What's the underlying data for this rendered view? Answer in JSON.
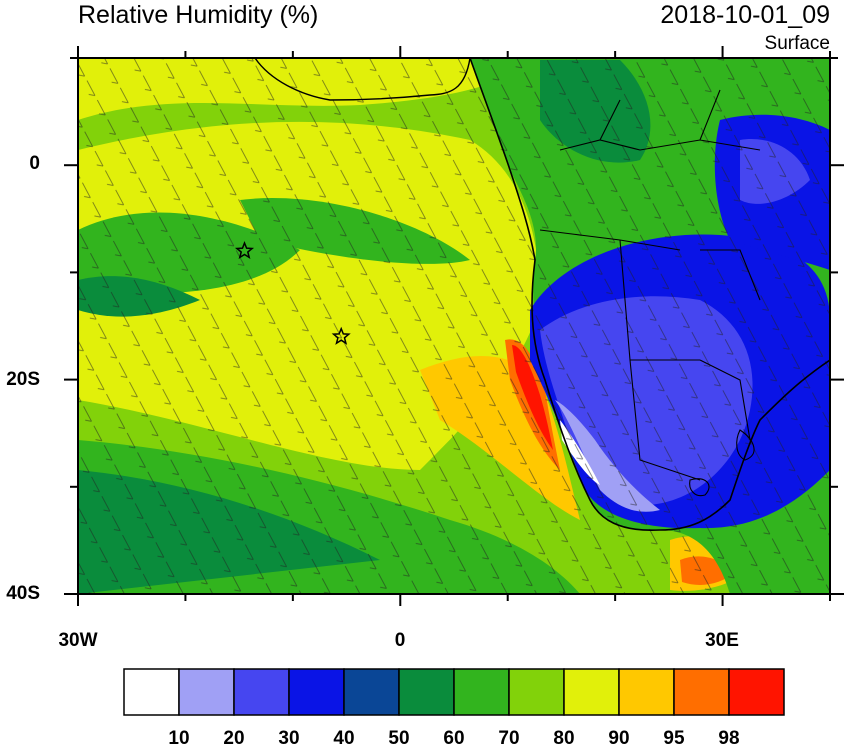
{
  "header": {
    "title": "Relative Humidity (%)",
    "date": "2018-10-01_09",
    "level": "Surface"
  },
  "axes": {
    "lat_ticks": [
      "0",
      "20S",
      "40S"
    ],
    "lon_ticks": [
      "30W",
      "0",
      "30E"
    ]
  },
  "colorbar": {
    "labels": [
      "10",
      "20",
      "30",
      "40",
      "50",
      "60",
      "70",
      "80",
      "90",
      "95",
      "98"
    ],
    "colors": [
      "#ffffff",
      "#a0a0f5",
      "#4646f0",
      "#0a14e6",
      "#0a4696",
      "#0a8c3c",
      "#32b41e",
      "#82d20a",
      "#e1f00a",
      "#ffc800",
      "#ff6e00",
      "#ff1400"
    ]
  },
  "markers": [
    {
      "label": "star-1",
      "lon": -14.5,
      "lat": -8
    },
    {
      "label": "star-2",
      "lon": -5.5,
      "lat": -16
    }
  ]
}
